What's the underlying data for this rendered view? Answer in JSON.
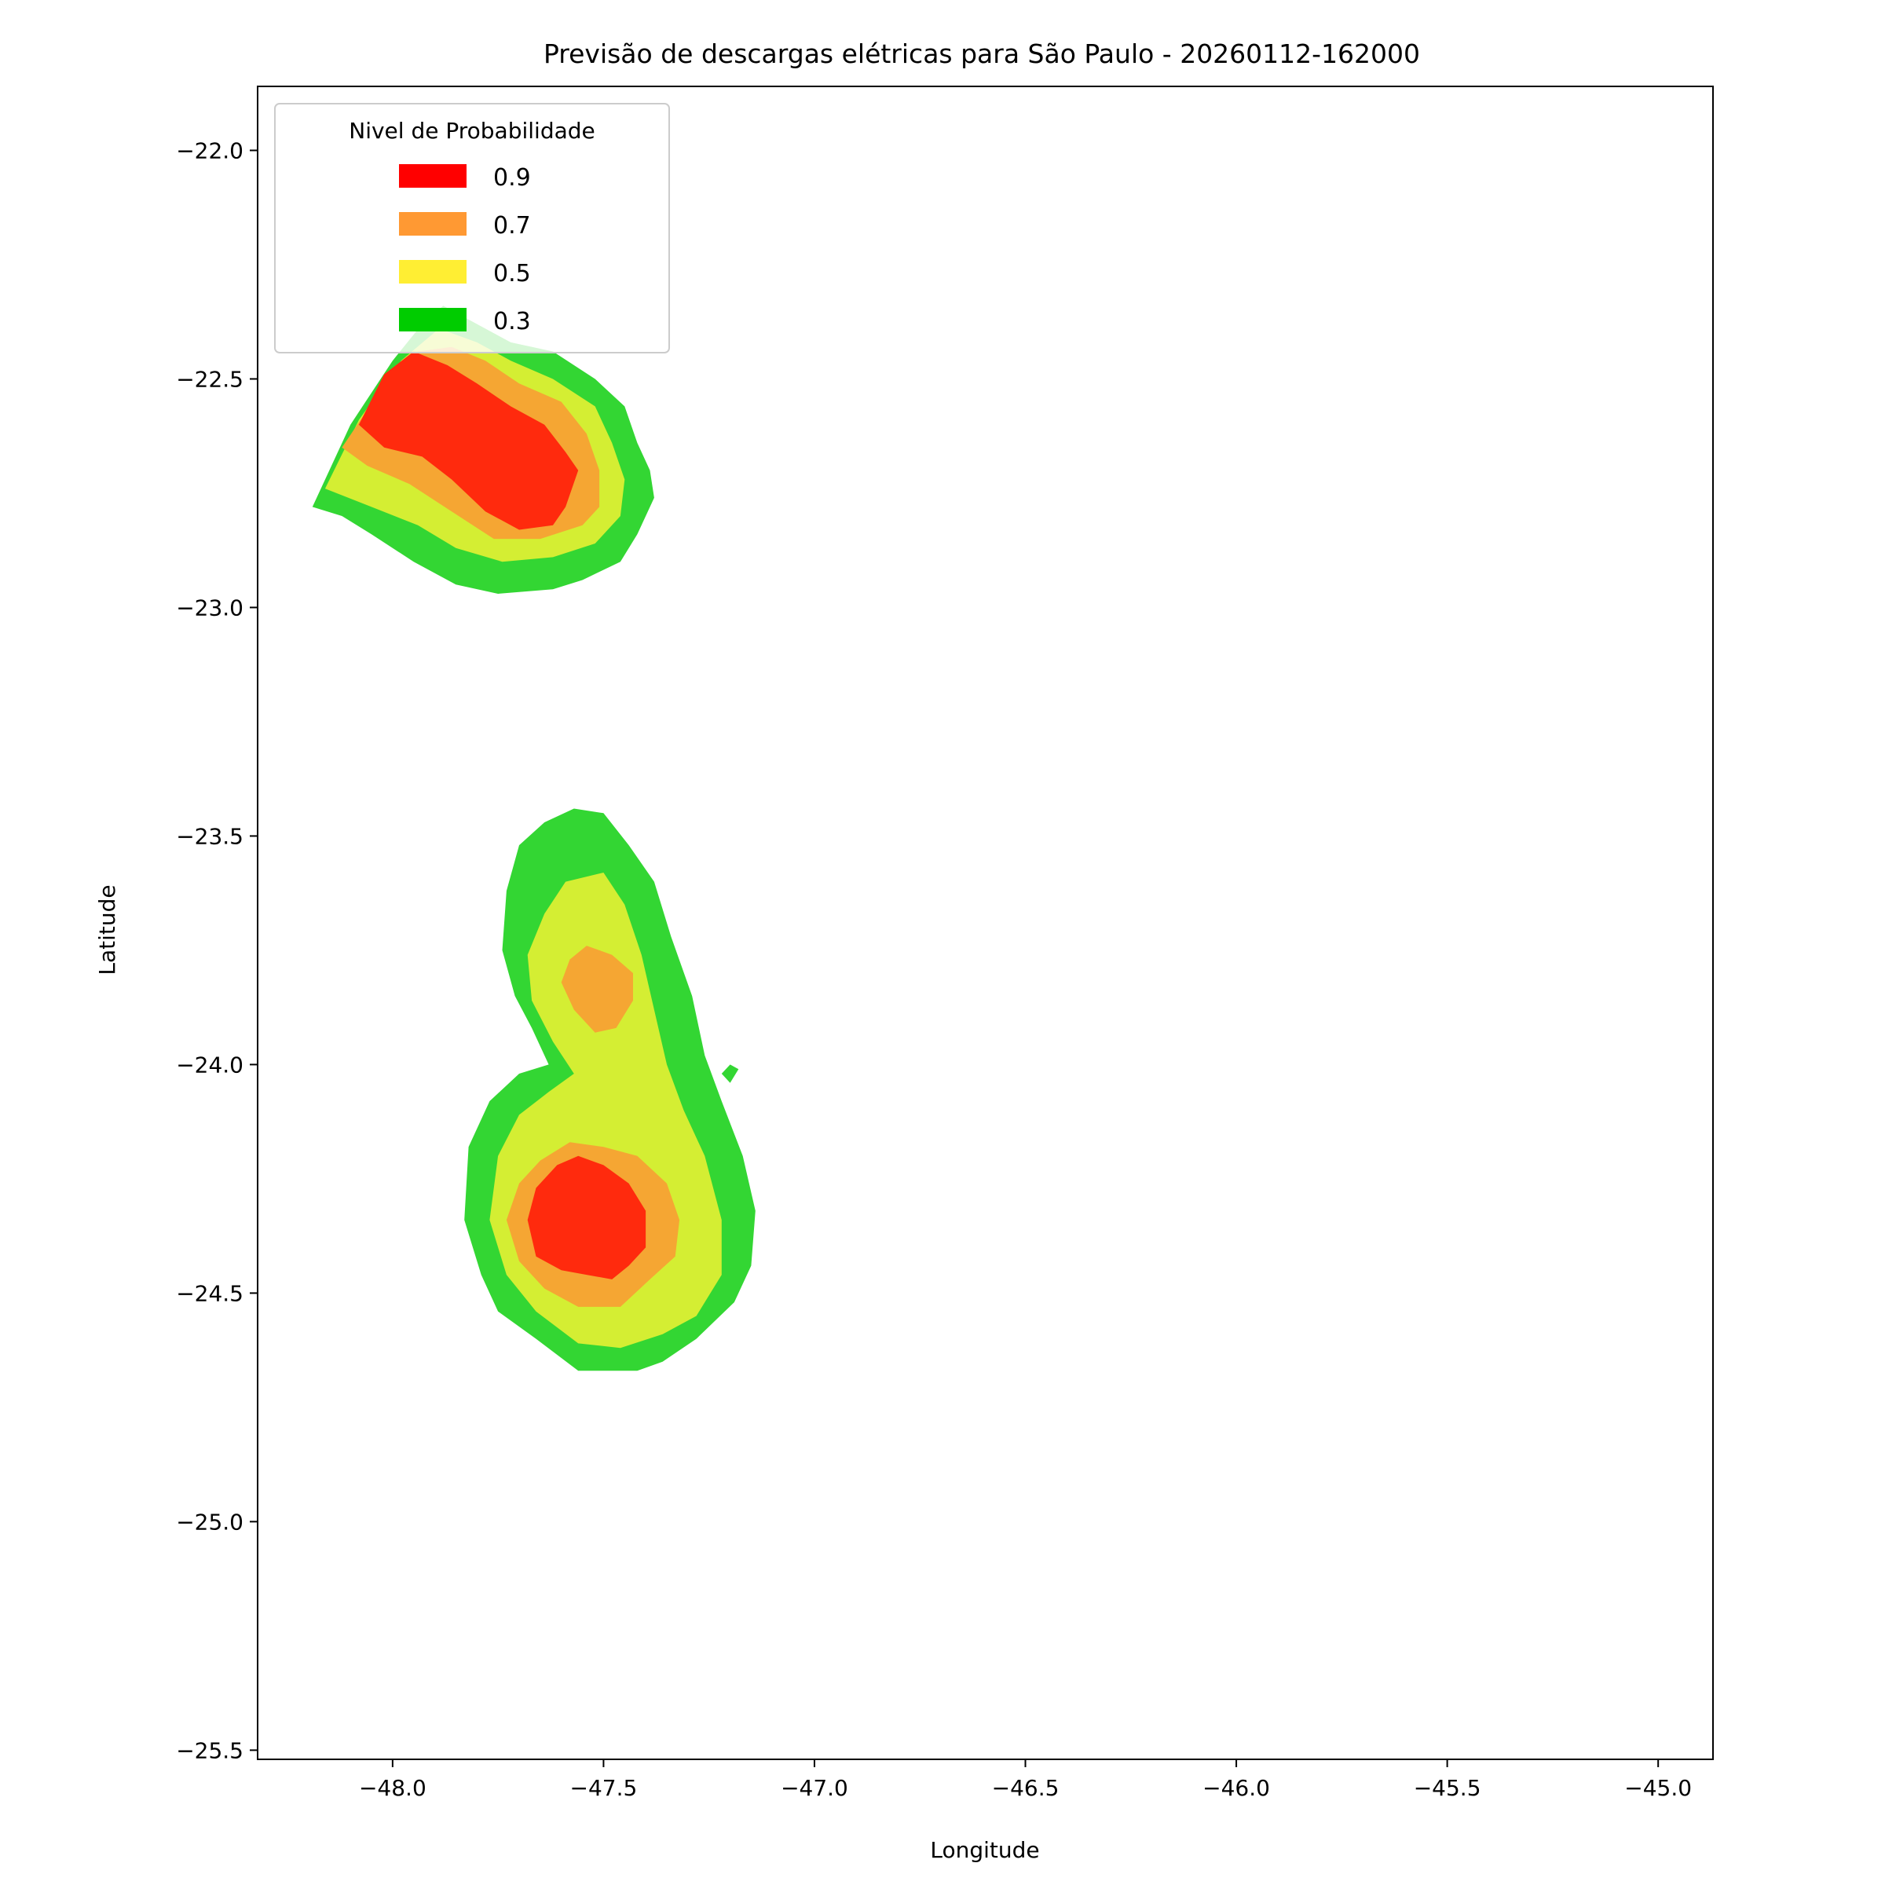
{
  "chart_data": {
    "type": "contour",
    "title": "Previsão de descargas elétricas para São Paulo - 20260112-162000",
    "xlabel": "Longitude",
    "ylabel": "Latitude",
    "xlim": [
      -48.32,
      -44.87
    ],
    "ylim": [
      -25.52,
      -21.86
    ],
    "xticks": [
      -48.0,
      -47.5,
      -47.0,
      -46.5,
      -46.0,
      -45.5,
      -45.0
    ],
    "xtick_labels": [
      "−48.0",
      "−47.5",
      "−47.0",
      "−46.5",
      "−46.0",
      "−45.5",
      "−45.0"
    ],
    "yticks": [
      -22.0,
      -22.5,
      -23.0,
      -23.5,
      -24.0,
      -24.5,
      -25.0,
      -25.5
    ],
    "ytick_labels": [
      "−22.0",
      "−22.5",
      "−23.0",
      "−23.5",
      "−24.0",
      "−24.5",
      "−25.0",
      "−25.5"
    ],
    "grid": false,
    "legend": {
      "title": "Nivel de Probabilidade",
      "placement": "upper-left",
      "entries": [
        {
          "label": "0.9",
          "color": "#ff0000"
        },
        {
          "label": "0.7",
          "color": "#ff9933"
        },
        {
          "label": "0.5",
          "color": "#ffee33"
        },
        {
          "label": "0.3",
          "color": "#00cc00"
        }
      ]
    },
    "fill_colors": {
      "0.3": "#33d633",
      "0.5": "#d4ee33",
      "0.7": "#f5a633",
      "0.9": "#ff2a0d"
    },
    "regions": [
      {
        "name": "northern-cell",
        "levels": [
          {
            "level": "0.3",
            "polygon": [
              [
                -48.19,
                -22.78
              ],
              [
                -48.1,
                -22.6
              ],
              [
                -48.0,
                -22.46
              ],
              [
                -47.93,
                -22.38
              ],
              [
                -47.88,
                -22.34
              ],
              [
                -47.8,
                -22.38
              ],
              [
                -47.72,
                -22.42
              ],
              [
                -47.62,
                -22.44
              ],
              [
                -47.52,
                -22.5
              ],
              [
                -47.45,
                -22.56
              ],
              [
                -47.42,
                -22.64
              ],
              [
                -47.39,
                -22.7
              ],
              [
                -47.38,
                -22.76
              ],
              [
                -47.42,
                -22.84
              ],
              [
                -47.46,
                -22.9
              ],
              [
                -47.55,
                -22.94
              ],
              [
                -47.62,
                -22.96
              ],
              [
                -47.75,
                -22.97
              ],
              [
                -47.85,
                -22.95
              ],
              [
                -47.95,
                -22.9
              ],
              [
                -48.05,
                -22.84
              ],
              [
                -48.12,
                -22.8
              ]
            ]
          },
          {
            "level": "0.5",
            "polygon": [
              [
                -48.16,
                -22.74
              ],
              [
                -48.08,
                -22.59
              ],
              [
                -47.98,
                -22.46
              ],
              [
                -47.89,
                -22.39
              ],
              [
                -47.8,
                -22.42
              ],
              [
                -47.72,
                -22.46
              ],
              [
                -47.62,
                -22.5
              ],
              [
                -47.52,
                -22.56
              ],
              [
                -47.48,
                -22.64
              ],
              [
                -47.45,
                -22.72
              ],
              [
                -47.46,
                -22.8
              ],
              [
                -47.52,
                -22.86
              ],
              [
                -47.62,
                -22.89
              ],
              [
                -47.74,
                -22.9
              ],
              [
                -47.85,
                -22.87
              ],
              [
                -47.94,
                -22.82
              ],
              [
                -48.05,
                -22.78
              ]
            ]
          },
          {
            "level": "0.7",
            "polygon": [
              [
                -48.12,
                -22.65
              ],
              [
                -48.04,
                -22.54
              ],
              [
                -47.94,
                -22.44
              ],
              [
                -47.86,
                -22.43
              ],
              [
                -47.78,
                -22.46
              ],
              [
                -47.7,
                -22.51
              ],
              [
                -47.6,
                -22.55
              ],
              [
                -47.54,
                -22.62
              ],
              [
                -47.51,
                -22.7
              ],
              [
                -47.51,
                -22.78
              ],
              [
                -47.55,
                -22.82
              ],
              [
                -47.65,
                -22.85
              ],
              [
                -47.76,
                -22.85
              ],
              [
                -47.86,
                -22.79
              ],
              [
                -47.96,
                -22.73
              ],
              [
                -48.06,
                -22.69
              ]
            ]
          },
          {
            "level": "0.9",
            "polygon": [
              [
                -48.08,
                -22.6
              ],
              [
                -48.02,
                -22.49
              ],
              [
                -47.95,
                -22.44
              ],
              [
                -47.87,
                -22.47
              ],
              [
                -47.8,
                -22.51
              ],
              [
                -47.72,
                -22.56
              ],
              [
                -47.64,
                -22.6
              ],
              [
                -47.59,
                -22.66
              ],
              [
                -47.56,
                -22.7
              ],
              [
                -47.59,
                -22.78
              ],
              [
                -47.62,
                -22.82
              ],
              [
                -47.7,
                -22.83
              ],
              [
                -47.78,
                -22.79
              ],
              [
                -47.86,
                -22.72
              ],
              [
                -47.93,
                -22.67
              ],
              [
                -48.02,
                -22.65
              ]
            ]
          }
        ]
      },
      {
        "name": "southern-cell",
        "levels": [
          {
            "level": "0.3",
            "polygon": [
              [
                -47.57,
                -23.44
              ],
              [
                -47.5,
                -23.45
              ],
              [
                -47.44,
                -23.52
              ],
              [
                -47.38,
                -23.6
              ],
              [
                -47.34,
                -23.72
              ],
              [
                -47.29,
                -23.85
              ],
              [
                -47.26,
                -23.98
              ],
              [
                -47.22,
                -24.08
              ],
              [
                -47.17,
                -24.2
              ],
              [
                -47.14,
                -24.32
              ],
              [
                -47.15,
                -24.44
              ],
              [
                -47.19,
                -24.52
              ],
              [
                -47.28,
                -24.6
              ],
              [
                -47.36,
                -24.65
              ],
              [
                -47.42,
                -24.67
              ],
              [
                -47.56,
                -24.67
              ],
              [
                -47.66,
                -24.6
              ],
              [
                -47.75,
                -24.54
              ],
              [
                -47.79,
                -24.46
              ],
              [
                -47.83,
                -24.34
              ],
              [
                -47.82,
                -24.18
              ],
              [
                -47.77,
                -24.08
              ],
              [
                -47.7,
                -24.02
              ],
              [
                -47.63,
                -24.0
              ],
              [
                -47.67,
                -23.92
              ],
              [
                -47.71,
                -23.85
              ],
              [
                -47.74,
                -23.75
              ],
              [
                -47.73,
                -23.62
              ],
              [
                -47.7,
                -23.52
              ],
              [
                -47.64,
                -23.47
              ]
            ]
          },
          {
            "level": "0.5",
            "polygon": [
              [
                -47.5,
                -23.58
              ],
              [
                -47.45,
                -23.65
              ],
              [
                -47.41,
                -23.76
              ],
              [
                -47.38,
                -23.88
              ],
              [
                -47.35,
                -24.0
              ],
              [
                -47.31,
                -24.1
              ],
              [
                -47.26,
                -24.2
              ],
              [
                -47.22,
                -24.34
              ],
              [
                -47.22,
                -24.46
              ],
              [
                -47.28,
                -24.55
              ],
              [
                -47.36,
                -24.59
              ],
              [
                -47.46,
                -24.62
              ],
              [
                -47.56,
                -24.61
              ],
              [
                -47.66,
                -24.54
              ],
              [
                -47.73,
                -24.46
              ],
              [
                -47.77,
                -24.34
              ],
              [
                -47.75,
                -24.2
              ],
              [
                -47.7,
                -24.11
              ],
              [
                -47.63,
                -24.06
              ],
              [
                -47.57,
                -24.02
              ],
              [
                -47.62,
                -23.95
              ],
              [
                -47.67,
                -23.86
              ],
              [
                -47.68,
                -23.76
              ],
              [
                -47.64,
                -23.67
              ],
              [
                -47.59,
                -23.6
              ]
            ]
          },
          {
            "level": "0.7",
            "polygon": [
              [
                -47.54,
                -23.74
              ],
              [
                -47.48,
                -23.76
              ],
              [
                -47.43,
                -23.8
              ],
              [
                -47.43,
                -23.86
              ],
              [
                -47.47,
                -23.92
              ],
              [
                -47.52,
                -23.93
              ],
              [
                -47.57,
                -23.88
              ],
              [
                -47.6,
                -23.82
              ],
              [
                -47.58,
                -23.77
              ]
            ]
          },
          {
            "level": "0.7",
            "polygon": [
              [
                -47.58,
                -24.17
              ],
              [
                -47.5,
                -24.18
              ],
              [
                -47.42,
                -24.2
              ],
              [
                -47.35,
                -24.26
              ],
              [
                -47.32,
                -24.34
              ],
              [
                -47.33,
                -24.42
              ],
              [
                -47.39,
                -24.47
              ],
              [
                -47.46,
                -24.53
              ],
              [
                -47.56,
                -24.53
              ],
              [
                -47.64,
                -24.49
              ],
              [
                -47.7,
                -24.43
              ],
              [
                -47.73,
                -24.34
              ],
              [
                -47.7,
                -24.26
              ],
              [
                -47.65,
                -24.21
              ]
            ]
          },
          {
            "level": "0.9",
            "polygon": [
              [
                -47.56,
                -24.2
              ],
              [
                -47.5,
                -24.22
              ],
              [
                -47.44,
                -24.26
              ],
              [
                -47.4,
                -24.32
              ],
              [
                -47.4,
                -24.4
              ],
              [
                -47.44,
                -24.44
              ],
              [
                -47.48,
                -24.47
              ],
              [
                -47.54,
                -24.46
              ],
              [
                -47.6,
                -24.45
              ],
              [
                -47.66,
                -24.42
              ],
              [
                -47.68,
                -24.34
              ],
              [
                -47.66,
                -24.27
              ],
              [
                -47.61,
                -24.22
              ]
            ]
          },
          {
            "level": "0.3",
            "polygon": [
              [
                -47.22,
                -24.02
              ],
              [
                -47.2,
                -24.0
              ],
              [
                -47.18,
                -24.01
              ],
              [
                -47.2,
                -24.04
              ]
            ]
          }
        ]
      }
    ]
  }
}
